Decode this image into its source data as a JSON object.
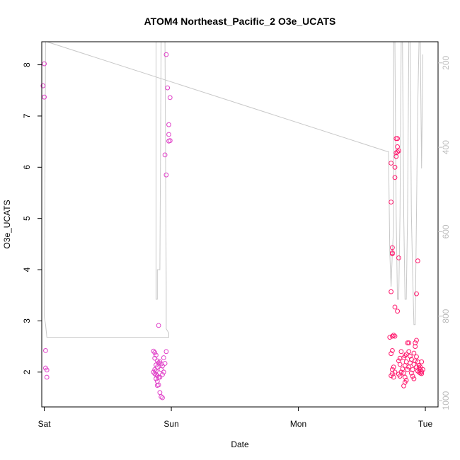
{
  "chart_data": {
    "type": "scatter",
    "title": "ATOM4 Northeast_Pacific_2 O3e_UCATS",
    "xlabel": "Date",
    "ylabel": "O3e_UCATS",
    "x_ticks": [
      "Sat",
      "Sun",
      "Mon",
      "Tue"
    ],
    "x_range": [
      -0.02,
      3.1
    ],
    "y_range": [
      1.32,
      8.45
    ],
    "y_ticks": [
      2,
      3,
      4,
      5,
      6,
      7,
      8
    ],
    "y2_range": [
      1015,
      150
    ],
    "y2_ticks": [
      200,
      400,
      600,
      800,
      1000
    ],
    "grid": false,
    "legend": "none",
    "colors": {
      "points_early": "#e040c8",
      "points_late": "#ff1a6e",
      "secondary_line": "#c8c8c8",
      "axis": "#000000"
    },
    "series": [
      {
        "values": [
          [
            0.0,
            8.02
          ],
          [
            -0.01,
            7.59
          ],
          [
            0.0,
            7.37
          ],
          [
            0.01,
            2.42
          ],
          [
            0.01,
            2.08
          ],
          [
            0.02,
            2.04
          ],
          [
            0.02,
            1.9
          ],
          [
            0.86,
            2.41
          ],
          [
            0.87,
            2.38
          ],
          [
            0.88,
            2.33
          ],
          [
            0.87,
            2.27
          ],
          [
            0.89,
            2.22
          ],
          [
            0.9,
            2.18
          ],
          [
            0.88,
            2.14
          ],
          [
            0.89,
            2.1
          ],
          [
            0.87,
            2.05
          ],
          [
            0.88,
            2.02
          ],
          [
            0.86,
            2.0
          ],
          [
            0.87,
            1.97
          ],
          [
            0.88,
            1.95
          ],
          [
            0.89,
            1.93
          ],
          [
            0.9,
            1.9
          ],
          [
            0.88,
            1.87
          ],
          [
            0.89,
            1.82
          ],
          [
            0.9,
            1.75
          ],
          [
            0.91,
            2.2
          ],
          [
            0.92,
            2.16
          ],
          [
            0.93,
            2.12
          ],
          [
            0.92,
            2.05
          ],
          [
            0.94,
            2.0
          ],
          [
            0.93,
            1.95
          ],
          [
            0.91,
            1.9
          ],
          [
            0.95,
            2.17
          ],
          [
            0.96,
            2.4
          ],
          [
            0.94,
            2.28
          ],
          [
            0.9,
            2.91
          ],
          [
            0.91,
            1.6
          ],
          [
            0.92,
            1.52
          ],
          [
            0.93,
            1.5
          ],
          [
            0.89,
            1.74
          ],
          [
            0.96,
            8.2
          ],
          [
            0.97,
            7.55
          ],
          [
            0.99,
            7.36
          ],
          [
            0.98,
            6.83
          ],
          [
            0.98,
            6.64
          ],
          [
            0.99,
            6.52
          ],
          [
            0.98,
            6.51
          ],
          [
            0.95,
            6.24
          ],
          [
            0.96,
            5.85
          ]
        ]
      },
      {
        "values": [
          [
            2.73,
            6.08
          ],
          [
            2.73,
            5.32
          ],
          [
            2.74,
            4.43
          ],
          [
            2.74,
            4.33
          ],
          [
            2.74,
            4.31
          ],
          [
            2.73,
            3.57
          ],
          [
            2.77,
            6.56
          ],
          [
            2.78,
            6.56
          ],
          [
            2.78,
            6.4
          ],
          [
            2.79,
            6.32
          ],
          [
            2.78,
            6.3
          ],
          [
            2.77,
            6.28
          ],
          [
            2.77,
            6.21
          ],
          [
            2.76,
            6.0
          ],
          [
            2.76,
            5.8
          ],
          [
            2.79,
            4.23
          ],
          [
            2.94,
            4.17
          ],
          [
            2.93,
            3.53
          ],
          [
            2.76,
            3.27
          ],
          [
            2.78,
            3.19
          ],
          [
            2.72,
            2.68
          ],
          [
            2.74,
            2.7
          ],
          [
            2.75,
            2.72
          ],
          [
            2.76,
            2.7
          ],
          [
            2.73,
            2.36
          ],
          [
            2.74,
            2.42
          ],
          [
            2.75,
            2.1
          ],
          [
            2.74,
            2.05
          ],
          [
            2.76,
            2.0
          ],
          [
            2.73,
            1.93
          ],
          [
            2.75,
            1.9
          ],
          [
            2.74,
            1.97
          ],
          [
            2.79,
            2.22
          ],
          [
            2.8,
            2.27
          ],
          [
            2.81,
            2.4
          ],
          [
            2.8,
            2.15
          ],
          [
            2.82,
            2.06
          ],
          [
            2.81,
            2.0
          ],
          [
            2.79,
            1.96
          ],
          [
            2.8,
            1.92
          ],
          [
            2.83,
            2.28
          ],
          [
            2.84,
            2.32
          ],
          [
            2.85,
            2.35
          ],
          [
            2.86,
            2.57
          ],
          [
            2.87,
            2.57
          ],
          [
            2.85,
            2.2
          ],
          [
            2.84,
            2.13
          ],
          [
            2.86,
            2.05
          ],
          [
            2.83,
            1.98
          ],
          [
            2.84,
            1.9
          ],
          [
            2.85,
            1.84
          ],
          [
            2.84,
            1.8
          ],
          [
            2.83,
            1.73
          ],
          [
            2.87,
            2.4
          ],
          [
            2.88,
            2.31
          ],
          [
            2.89,
            2.25
          ],
          [
            2.88,
            2.18
          ],
          [
            2.87,
            2.1
          ],
          [
            2.9,
            2.05
          ],
          [
            2.89,
            1.98
          ],
          [
            2.91,
            2.37
          ],
          [
            2.92,
            2.5
          ],
          [
            2.93,
            2.62
          ],
          [
            2.92,
            2.57
          ],
          [
            2.93,
            2.3
          ],
          [
            2.92,
            2.22
          ],
          [
            2.91,
            2.15
          ],
          [
            2.93,
            2.1
          ],
          [
            2.9,
            1.92
          ],
          [
            2.91,
            1.87
          ],
          [
            2.94,
            2.2
          ],
          [
            2.95,
            2.08
          ],
          [
            2.96,
            2.05
          ],
          [
            2.95,
            2.0
          ],
          [
            2.96,
            1.98
          ],
          [
            2.97,
            2.01
          ],
          [
            2.98,
            2.05
          ],
          [
            2.96,
            2.1
          ],
          [
            2.97,
            2.2
          ],
          [
            2.95,
            2.13
          ],
          [
            2.94,
            2.02
          ],
          [
            2.97,
            1.97
          ]
        ]
      }
    ],
    "secondary_line": [
      [
        0.0,
        802
      ],
      [
        0.01,
        820
      ],
      [
        0.02,
        850
      ],
      [
        0.03,
        850
      ],
      [
        0.98,
        850
      ],
      [
        0.98,
        840
      ],
      [
        0.96,
        830
      ],
      [
        0.96,
        730
      ],
      [
        0.95,
        150
      ],
      [
        0.92,
        150
      ],
      [
        0.91,
        690
      ],
      [
        0.89,
        690
      ],
      [
        0.89,
        760
      ],
      [
        0.88,
        760
      ],
      [
        0.88,
        150
      ],
      [
        0.01,
        150
      ],
      [
        0.0,
        802
      ]
    ],
    "secondary_line_2": [
      [
        0.02,
        150
      ],
      [
        2.7,
        410
      ],
      [
        2.71,
        410
      ],
      [
        2.72,
        650
      ],
      [
        2.73,
        730
      ],
      [
        2.74,
        650
      ],
      [
        2.75,
        590
      ],
      [
        2.75,
        150
      ],
      [
        2.76,
        150
      ],
      [
        2.77,
        560
      ],
      [
        2.78,
        760
      ],
      [
        2.79,
        760
      ],
      [
        2.8,
        560
      ],
      [
        2.81,
        150
      ],
      [
        2.82,
        150
      ],
      [
        2.83,
        560
      ],
      [
        2.84,
        760
      ],
      [
        2.85,
        760
      ],
      [
        2.86,
        560
      ],
      [
        2.87,
        150
      ],
      [
        2.88,
        150
      ],
      [
        2.89,
        560
      ],
      [
        2.9,
        700
      ],
      [
        2.91,
        820
      ],
      [
        2.92,
        820
      ],
      [
        2.93,
        560
      ],
      [
        2.94,
        300
      ],
      [
        2.95,
        150
      ],
      [
        2.96,
        150
      ],
      [
        2.97,
        450
      ],
      [
        2.98,
        180
      ]
    ]
  }
}
